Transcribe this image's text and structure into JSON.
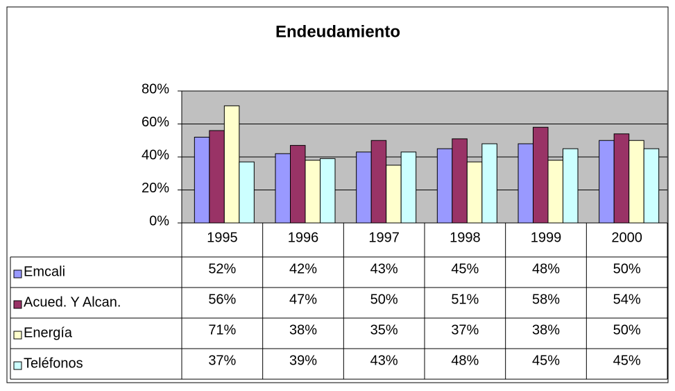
{
  "chart_data": {
    "type": "bar",
    "title": "Endeudamiento",
    "categories": [
      "1995",
      "1996",
      "1997",
      "1998",
      "1999",
      "2000"
    ],
    "series": [
      {
        "name": "Emcali",
        "color": "#9999ff",
        "values": [
          52,
          42,
          43,
          45,
          48,
          50
        ],
        "value_labels": [
          "52%",
          "42%",
          "43%",
          "45%",
          "48%",
          "50%"
        ]
      },
      {
        "name": "Acued. Y Alcan.",
        "color": "#993366",
        "values": [
          56,
          47,
          50,
          51,
          58,
          54
        ],
        "value_labels": [
          "56%",
          "47%",
          "50%",
          "51%",
          "58%",
          "54%"
        ]
      },
      {
        "name": "Energía",
        "color": "#ffffcc",
        "values": [
          71,
          38,
          35,
          37,
          38,
          50
        ],
        "value_labels": [
          "71%",
          "38%",
          "35%",
          "37%",
          "38%",
          "50%"
        ]
      },
      {
        "name": "Teléfonos",
        "color": "#ccffff",
        "values": [
          37,
          39,
          43,
          48,
          45,
          45
        ],
        "value_labels": [
          "37%",
          "39%",
          "43%",
          "48%",
          "45%",
          "45%"
        ]
      }
    ],
    "ylim": [
      0,
      80
    ],
    "yticks": [
      {
        "value": 0,
        "label": "0%"
      },
      {
        "value": 20,
        "label": "20%"
      },
      {
        "value": 40,
        "label": "40%"
      },
      {
        "value": 60,
        "label": "60%"
      },
      {
        "value": 80,
        "label": "80%"
      }
    ],
    "grid": true,
    "plot_background": "#c0c0c0",
    "data_table": true
  }
}
